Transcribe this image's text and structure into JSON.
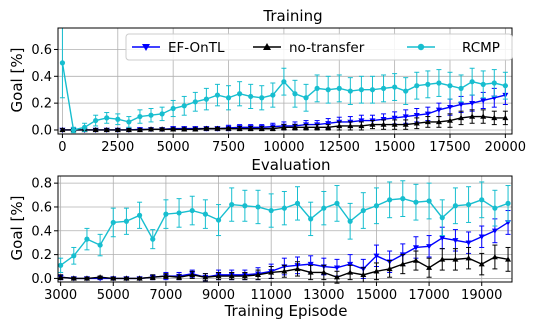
{
  "chart_data": [
    {
      "type": "line",
      "title": "Training",
      "ylabel": "Goal [%]",
      "xlabel": "",
      "xlim": [
        -200,
        20300
      ],
      "ylim": [
        -0.03,
        0.76
      ],
      "x_ticks": [
        0,
        2500,
        5000,
        7500,
        10000,
        12500,
        15000,
        17500,
        20000
      ],
      "y_ticks": [
        0.0,
        0.2,
        0.4,
        0.6
      ],
      "grid": true,
      "legend": {
        "placement": "top-right",
        "orientation": "horizontal"
      },
      "x": [
        0,
        500,
        1000,
        1500,
        2000,
        2500,
        3000,
        3500,
        4000,
        4500,
        5000,
        5500,
        6000,
        6500,
        7000,
        7500,
        8000,
        8500,
        9000,
        9500,
        10000,
        10500,
        11000,
        11500,
        12000,
        12500,
        13000,
        13500,
        14000,
        14500,
        15000,
        15500,
        16000,
        16500,
        17000,
        17500,
        18000,
        18500,
        19000,
        19500,
        20000
      ],
      "series": [
        {
          "name": "EF-OnTL",
          "color": "#0000ff",
          "marker": "triangle-down",
          "values": [
            0.0,
            0.0,
            0.0,
            0.0,
            0.0,
            0.0,
            0.0,
            0.005,
            0.005,
            0.005,
            0.01,
            0.01,
            0.01,
            0.01,
            0.01,
            0.015,
            0.02,
            0.02,
            0.02,
            0.025,
            0.03,
            0.03,
            0.04,
            0.04,
            0.05,
            0.06,
            0.06,
            0.07,
            0.07,
            0.08,
            0.09,
            0.1,
            0.11,
            0.12,
            0.15,
            0.17,
            0.19,
            0.2,
            0.22,
            0.24,
            0.26
          ],
          "errors": [
            0.01,
            0.01,
            0.01,
            0.01,
            0.01,
            0.01,
            0.01,
            0.01,
            0.01,
            0.01,
            0.015,
            0.015,
            0.015,
            0.015,
            0.015,
            0.02,
            0.02,
            0.02,
            0.02,
            0.025,
            0.03,
            0.03,
            0.03,
            0.03,
            0.035,
            0.035,
            0.04,
            0.04,
            0.04,
            0.04,
            0.045,
            0.05,
            0.05,
            0.05,
            0.05,
            0.06,
            0.06,
            0.06,
            0.06,
            0.07,
            0.07
          ]
        },
        {
          "name": "no-transfer",
          "color": "#000000",
          "marker": "triangle-up",
          "values": [
            0.0,
            0.0,
            0.0,
            0.0,
            0.0,
            0.0,
            0.0,
            0.0,
            0.005,
            0.005,
            0.005,
            0.005,
            0.005,
            0.01,
            0.01,
            0.01,
            0.01,
            0.01,
            0.01,
            0.01,
            0.02,
            0.02,
            0.02,
            0.02,
            0.02,
            0.03,
            0.03,
            0.03,
            0.04,
            0.04,
            0.04,
            0.04,
            0.05,
            0.06,
            0.06,
            0.07,
            0.09,
            0.1,
            0.1,
            0.09,
            0.09
          ],
          "errors": [
            0.01,
            0.01,
            0.01,
            0.01,
            0.01,
            0.01,
            0.01,
            0.01,
            0.01,
            0.01,
            0.01,
            0.01,
            0.01,
            0.01,
            0.01,
            0.01,
            0.015,
            0.015,
            0.015,
            0.015,
            0.02,
            0.02,
            0.02,
            0.02,
            0.02,
            0.03,
            0.03,
            0.03,
            0.03,
            0.035,
            0.035,
            0.035,
            0.04,
            0.04,
            0.04,
            0.05,
            0.05,
            0.05,
            0.05,
            0.05,
            0.05
          ]
        },
        {
          "name": "RCMP",
          "color": "#17becf",
          "marker": "circle",
          "values": [
            0.5,
            0.0,
            0.02,
            0.07,
            0.09,
            0.08,
            0.06,
            0.1,
            0.11,
            0.12,
            0.16,
            0.18,
            0.21,
            0.23,
            0.26,
            0.24,
            0.27,
            0.25,
            0.24,
            0.26,
            0.36,
            0.27,
            0.24,
            0.31,
            0.3,
            0.31,
            0.29,
            0.3,
            0.3,
            0.31,
            0.32,
            0.29,
            0.33,
            0.34,
            0.35,
            0.33,
            0.31,
            0.36,
            0.34,
            0.35,
            0.33
          ],
          "errors": [
            0.26,
            0.02,
            0.03,
            0.04,
            0.04,
            0.04,
            0.04,
            0.05,
            0.05,
            0.05,
            0.06,
            0.07,
            0.07,
            0.08,
            0.08,
            0.09,
            0.09,
            0.09,
            0.09,
            0.09,
            0.1,
            0.1,
            0.1,
            0.1,
            0.1,
            0.1,
            0.1,
            0.1,
            0.1,
            0.1,
            0.1,
            0.1,
            0.1,
            0.1,
            0.1,
            0.1,
            0.1,
            0.1,
            0.1,
            0.1,
            0.1
          ]
        }
      ]
    },
    {
      "type": "line",
      "title": "Evaluation",
      "ylabel": "Goal [%]",
      "xlabel": "Training Episode",
      "xlim": [
        2900,
        20150
      ],
      "ylim": [
        -0.03,
        0.86
      ],
      "x_ticks": [
        3000,
        5000,
        7000,
        9000,
        11000,
        13000,
        15000,
        17000,
        19000
      ],
      "y_ticks": [
        0.0,
        0.2,
        0.4,
        0.6,
        0.8
      ],
      "grid": true,
      "x": [
        3000,
        3500,
        4000,
        4500,
        5000,
        5500,
        6000,
        6500,
        7000,
        7500,
        8000,
        8500,
        9000,
        9500,
        10000,
        10500,
        11000,
        11500,
        12000,
        12500,
        13000,
        13500,
        14000,
        14500,
        15000,
        15500,
        16000,
        16500,
        17000,
        17500,
        18000,
        18500,
        19000,
        19500,
        20000
      ],
      "series": [
        {
          "name": "EF-OnTL",
          "color": "#0000ff",
          "marker": "triangle-down",
          "values": [
            0.01,
            0.0,
            0.0,
            0.0,
            0.0,
            0.0,
            0.0,
            0.01,
            0.02,
            0.02,
            0.04,
            0.01,
            0.03,
            0.03,
            0.03,
            0.04,
            0.06,
            0.1,
            0.11,
            0.12,
            0.1,
            0.09,
            0.12,
            0.08,
            0.19,
            0.14,
            0.2,
            0.26,
            0.27,
            0.34,
            0.32,
            0.3,
            0.35,
            0.4,
            0.47
          ],
          "errors": [
            0.02,
            0.01,
            0.01,
            0.01,
            0.01,
            0.01,
            0.01,
            0.02,
            0.03,
            0.03,
            0.03,
            0.03,
            0.04,
            0.04,
            0.04,
            0.05,
            0.06,
            0.07,
            0.07,
            0.07,
            0.07,
            0.07,
            0.08,
            0.08,
            0.09,
            0.09,
            0.09,
            0.09,
            0.09,
            0.09,
            0.09,
            0.09,
            0.09,
            0.1,
            0.1
          ]
        },
        {
          "name": "no-transfer",
          "color": "#000000",
          "marker": "triangle-up",
          "values": [
            0.01,
            0.0,
            0.0,
            0.01,
            0.0,
            0.0,
            0.0,
            0.01,
            0.02,
            0.01,
            0.03,
            0.01,
            0.02,
            0.02,
            0.02,
            0.03,
            0.05,
            0.06,
            0.08,
            0.05,
            0.05,
            0.01,
            0.05,
            0.03,
            0.06,
            0.08,
            0.12,
            0.15,
            0.09,
            0.16,
            0.16,
            0.17,
            0.12,
            0.18,
            0.16
          ],
          "errors": [
            0.02,
            0.01,
            0.01,
            0.01,
            0.01,
            0.01,
            0.01,
            0.02,
            0.02,
            0.02,
            0.03,
            0.03,
            0.03,
            0.03,
            0.03,
            0.04,
            0.05,
            0.05,
            0.06,
            0.06,
            0.06,
            0.05,
            0.06,
            0.06,
            0.07,
            0.07,
            0.08,
            0.08,
            0.08,
            0.09,
            0.09,
            0.09,
            0.09,
            0.1,
            0.1
          ]
        },
        {
          "name": "RCMP",
          "color": "#17becf",
          "marker": "circle",
          "values": [
            0.11,
            0.19,
            0.33,
            0.28,
            0.47,
            0.48,
            0.53,
            0.33,
            0.54,
            0.55,
            0.57,
            0.54,
            0.49,
            0.62,
            0.61,
            0.6,
            0.57,
            0.59,
            0.63,
            0.5,
            0.59,
            0.63,
            0.48,
            0.57,
            0.61,
            0.66,
            0.67,
            0.64,
            0.65,
            0.51,
            0.61,
            0.62,
            0.66,
            0.59,
            0.63
          ],
          "errors": [
            0.06,
            0.07,
            0.09,
            0.09,
            0.12,
            0.11,
            0.11,
            0.08,
            0.12,
            0.12,
            0.12,
            0.12,
            0.13,
            0.14,
            0.13,
            0.14,
            0.14,
            0.14,
            0.14,
            0.14,
            0.14,
            0.15,
            0.15,
            0.15,
            0.15,
            0.15,
            0.15,
            0.15,
            0.15,
            0.15,
            0.15,
            0.15,
            0.15,
            0.15,
            0.15
          ]
        }
      ]
    }
  ]
}
